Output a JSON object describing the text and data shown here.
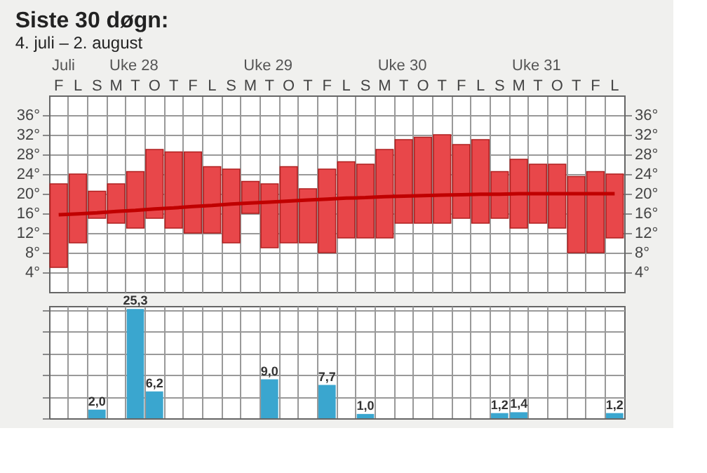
{
  "chart_data": [
    {
      "type": "bar",
      "title": "Siste 30 døgn:",
      "subtitle": "4. juli – 2. august",
      "categories": [
        "F",
        "L",
        "S",
        "M",
        "T",
        "O",
        "T",
        "F",
        "L",
        "S",
        "M",
        "T",
        "O",
        "T",
        "F",
        "L",
        "S",
        "M",
        "T",
        "O",
        "T",
        "F",
        "L",
        "S",
        "M",
        "T",
        "O",
        "T",
        "F",
        "L"
      ],
      "annotations": [
        "Juli",
        "Uke 28",
        "Uke 29",
        "Uke 30",
        "Uke 31"
      ],
      "series": [
        {
          "type": "bar",
          "color": "#e8474a",
          "base": [
            5,
            10,
            15,
            14,
            13,
            15,
            13,
            12,
            12,
            10,
            16,
            9,
            10,
            10,
            8,
            11,
            11,
            11,
            14,
            14,
            14,
            15,
            14,
            15,
            13,
            14,
            13,
            8,
            8,
            11
          ],
          "values": [
            17,
            14,
            5.5,
            8,
            11.5,
            14,
            15.5,
            16.5,
            13.5,
            15,
            6.5,
            13,
            15.5,
            11,
            17,
            15.5,
            15,
            18,
            17,
            17.5,
            18,
            15,
            17,
            9.5,
            14,
            12,
            13,
            15.5,
            16.5,
            13
          ]
        },
        {
          "type": "line",
          "axis": "y2",
          "color": "#c00000",
          "values": [
            15.7,
            15.9,
            16.1,
            16.4,
            16.6,
            16.9,
            17.1,
            17.4,
            17.6,
            17.9,
            18.1,
            18.3,
            18.5,
            18.7,
            18.9,
            19.1,
            19.2,
            19.4,
            19.5,
            19.6,
            19.7,
            19.8,
            19.9,
            19.9,
            20,
            20,
            20,
            20,
            20,
            20
          ]
        }
      ],
      "ylim": [
        0,
        40
      ],
      "yticks": [
        {
          "value": 4,
          "label": "4°"
        },
        {
          "value": 8,
          "label": "8°"
        },
        {
          "value": 12,
          "label": "12°"
        },
        {
          "value": 16,
          "label": "16°"
        },
        {
          "value": 20,
          "label": "20°"
        },
        {
          "value": 24,
          "label": "24°"
        },
        {
          "value": 28,
          "label": "28°"
        },
        {
          "value": 32,
          "label": "32°"
        },
        {
          "value": 36,
          "label": "36°"
        }
      ],
      "y2lim": [
        0,
        40
      ],
      "y2ticks": [
        {
          "value": 4,
          "label": "4°"
        },
        {
          "value": 8,
          "label": "8°"
        },
        {
          "value": 12,
          "label": "12°"
        },
        {
          "value": 16,
          "label": "16°"
        },
        {
          "value": 20,
          "label": "20°"
        },
        {
          "value": 24,
          "label": "24°"
        },
        {
          "value": 28,
          "label": "28°"
        },
        {
          "value": 32,
          "label": "32°"
        },
        {
          "value": 36,
          "label": "36°"
        }
      ],
      "grid": true
    },
    {
      "type": "bar",
      "categories": [
        null,
        null,
        null,
        null,
        null,
        null,
        null,
        null,
        null,
        null,
        null,
        null,
        null,
        null,
        null,
        null,
        null,
        null,
        null,
        null,
        null,
        null,
        null,
        null,
        null,
        null,
        null,
        null,
        null,
        null
      ],
      "values": [
        null,
        null,
        2.0,
        null,
        25.3,
        6.2,
        null,
        null,
        null,
        null,
        null,
        9.0,
        null,
        null,
        7.7,
        null,
        1.0,
        null,
        null,
        null,
        null,
        null,
        null,
        1.2,
        1.4,
        null,
        null,
        null,
        null,
        1.2
      ],
      "value_labels": [
        null,
        null,
        "2,0",
        null,
        "25,3",
        "6,2",
        null,
        null,
        null,
        null,
        null,
        "9,0",
        null,
        null,
        "7,7",
        null,
        "1,0",
        null,
        null,
        null,
        null,
        null,
        null,
        "1,2",
        "1,4",
        null,
        null,
        null,
        null,
        "1,2"
      ],
      "color": "#3aa6cf",
      "grid": true,
      "tick_labels": false
    }
  ]
}
